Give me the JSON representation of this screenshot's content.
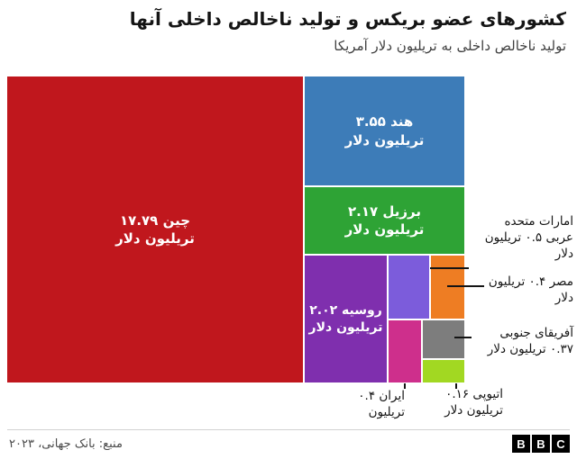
{
  "header": {
    "title": "کشورهای عضو بریکس و تولید ناخالص داخلی آنها",
    "subtitle": "تولید ناخالص داخلی به تریلیون دلار آمریکا"
  },
  "chart_data": {
    "type": "treemap",
    "title": "کشورهای عضو بریکس و تولید ناخالص داخلی آنها",
    "subtitle": "تولید ناخالص داخلی به تریلیون دلار آمریکا",
    "unit": "تریلیون دلار آمریکا",
    "series": [
      {
        "name": "چین",
        "value": 17.79,
        "value_fa": "۱۷.۷۹",
        "color": "#c0171d"
      },
      {
        "name": "هند",
        "value": 3.55,
        "value_fa": "۳.۵۵",
        "color": "#3d7cb8"
      },
      {
        "name": "برزیل",
        "value": 2.17,
        "value_fa": "۲.۱۷",
        "color": "#2ea335"
      },
      {
        "name": "روسیه",
        "value": 2.02,
        "value_fa": "۲.۰۲",
        "color": "#7f2fae"
      },
      {
        "name": "امارات متحده عربی",
        "value": 0.5,
        "value_fa": "۰.۵",
        "color": "#7c5cdb"
      },
      {
        "name": "مصر",
        "value": 0.4,
        "value_fa": "۰.۴",
        "color": "#ee7d23"
      },
      {
        "name": "ایران",
        "value": 0.4,
        "value_fa": "۰.۴",
        "color": "#ce2f8c"
      },
      {
        "name": "آفریقای جنوبی",
        "value": 0.37,
        "value_fa": "۰.۳۷",
        "color": "#7d7d7d"
      },
      {
        "name": "اتیوپی",
        "value": 0.16,
        "value_fa": "۰.۱۶",
        "color": "#a2d822"
      }
    ],
    "source": "منبع: بانک جهانی، ۲۰۲۳"
  },
  "tiles": {
    "china": {
      "line1": "چین ۱۷.۷۹",
      "line2": "تریلیون دلار",
      "color": "#c0171d"
    },
    "india": {
      "line1": "هند ۳.۵۵",
      "line2": "تریلیون دلار",
      "color": "#3d7cb8"
    },
    "brazil": {
      "line1": "برزیل ۲.۱۷",
      "line2": "تریلیون دلار",
      "color": "#2ea335"
    },
    "russia": {
      "line1": "روسیه ۲.۰۲",
      "line2": "تریلیون دلار",
      "color": "#7f2fae"
    },
    "uae": {
      "color": "#7c5cdb"
    },
    "egypt": {
      "color": "#ee7d23"
    },
    "iran": {
      "color": "#ce2f8c"
    },
    "south_africa": {
      "color": "#7d7d7d"
    },
    "ethiopia": {
      "color": "#a2d822"
    }
  },
  "annotations": {
    "uae": {
      "line1": "امارات متحده",
      "line2": "عربی ۰.۵ تریلیون",
      "line3": "دلار"
    },
    "egypt": {
      "line1": "مصر ۰.۴ تریلیون",
      "line2": "دلار"
    },
    "south_africa": {
      "line1": "آفریقای جنوبی",
      "line2": "۰.۳۷ تریلیون دلار"
    },
    "ethiopia": {
      "line1": "اتیوپی ۰.۱۶",
      "line2": "تریلیون دلار"
    },
    "iran": {
      "line1": "ایران ۰.۴",
      "line2": "تریلیون"
    }
  },
  "footer": {
    "source": "منبع: بانک جهانی، ۲۰۲۳",
    "logo_letters": [
      "B",
      "B",
      "C"
    ]
  }
}
